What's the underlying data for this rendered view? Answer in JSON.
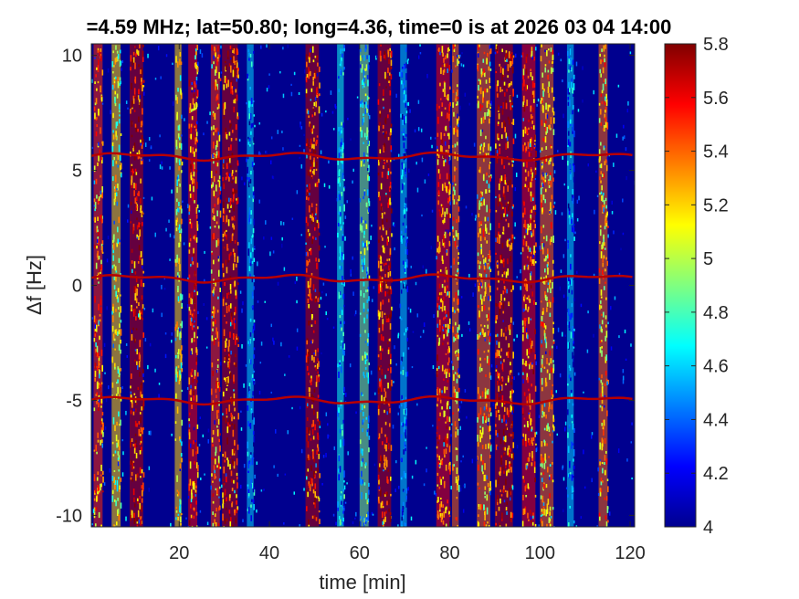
{
  "chart_data": {
    "type": "heatmap",
    "title": "=4.59 MHz;  lat=50.80; long=4.36, time=0 is at 2026 03 04 14:00",
    "xlabel": "time [min]",
    "ylabel": "Δf [Hz]",
    "xlim": [
      0.5,
      121
    ],
    "ylim": [
      -10.5,
      10.5
    ],
    "x_ticks": [
      20,
      40,
      60,
      80,
      100,
      120
    ],
    "x_tick_labels": [
      "20",
      "40",
      "60",
      "80",
      "100",
      "120"
    ],
    "y_ticks": [
      10,
      5,
      0,
      -5,
      -10
    ],
    "y_tick_labels": [
      "10",
      "5",
      "0",
      "-5",
      "-10"
    ],
    "colorbar": {
      "colormap": "jet",
      "clim": [
        4,
        5.8
      ],
      "ticks": [
        5.8,
        5.6,
        5.4,
        5.2,
        5,
        4.8,
        4.6,
        4.4,
        4.2,
        4
      ],
      "tick_labels": [
        "5.8",
        "5.6",
        "5.4",
        "5.2",
        "5",
        "4.8",
        "4.6",
        "4.4",
        "4.2",
        "4"
      ]
    },
    "background_level": 4.1,
    "tone_lines_hz": [
      5.6,
      0.3,
      -5.0
    ],
    "tone_level": 5.7,
    "interference_bands_min": [
      {
        "start": 1,
        "end": 3,
        "level": 5.5
      },
      {
        "start": 5,
        "end": 7,
        "level": 5.2
      },
      {
        "start": 9,
        "end": 12,
        "level": 5.7
      },
      {
        "start": 19,
        "end": 20.5,
        "level": 5.2
      },
      {
        "start": 22,
        "end": 24,
        "level": 5.6
      },
      {
        "start": 27,
        "end": 29,
        "level": 5.5
      },
      {
        "start": 29.5,
        "end": 33,
        "level": 5.7
      },
      {
        "start": 35,
        "end": 36.5,
        "level": 4.6
      },
      {
        "start": 48,
        "end": 51,
        "level": 5.7
      },
      {
        "start": 55,
        "end": 56.5,
        "level": 4.7
      },
      {
        "start": 60,
        "end": 62,
        "level": 4.9
      },
      {
        "start": 64,
        "end": 67,
        "level": 5.7
      },
      {
        "start": 69,
        "end": 70.5,
        "level": 4.6
      },
      {
        "start": 77,
        "end": 80,
        "level": 5.6
      },
      {
        "start": 80.5,
        "end": 82,
        "level": 5.4
      },
      {
        "start": 86,
        "end": 89,
        "level": 5.4
      },
      {
        "start": 90,
        "end": 94,
        "level": 5.7
      },
      {
        "start": 96,
        "end": 99,
        "level": 5.6
      },
      {
        "start": 100,
        "end": 103,
        "level": 5.4
      },
      {
        "start": 106,
        "end": 107.5,
        "level": 4.6
      },
      {
        "start": 113,
        "end": 115,
        "level": 5.4
      }
    ]
  }
}
